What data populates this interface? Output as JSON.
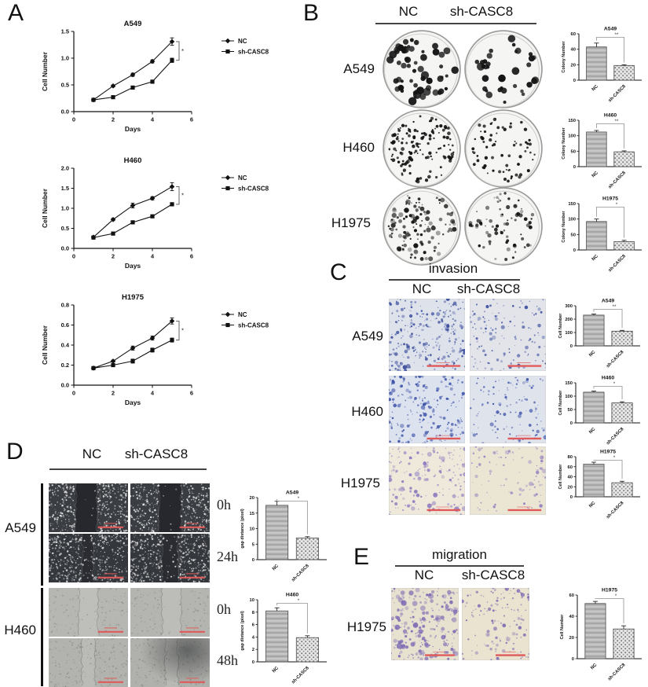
{
  "colors": {
    "axis": "#111111",
    "bracket": "#909090",
    "scale_bar": "#e05a5a",
    "bar_nc_fill": "#b9b9b9",
    "bar_sh_fill": "#e8e8e8"
  },
  "panels": {
    "A": {
      "label": "A",
      "legend": [
        "NC",
        "sh-CASC8"
      ]
    },
    "B": {
      "label": "B",
      "col_headers": [
        "NC",
        "sh-CASC8"
      ],
      "rows": [
        "A549",
        "H460",
        "H1975"
      ],
      "dishes": [
        {
          "row": "A549",
          "col": "NC",
          "dots": 58,
          "rmin": 1.8,
          "rmax": 5.2,
          "soft": false
        },
        {
          "row": "A549",
          "col": "sh-CASC8",
          "dots": 34,
          "rmin": 2.0,
          "rmax": 5.0,
          "soft": false
        },
        {
          "row": "H460",
          "col": "NC",
          "dots": 135,
          "rmin": 0.9,
          "rmax": 2.4,
          "soft": false
        },
        {
          "row": "H460",
          "col": "sh-CASC8",
          "dots": 70,
          "rmin": 0.9,
          "rmax": 2.2,
          "soft": false
        },
        {
          "row": "H1975",
          "col": "NC",
          "dots": 120,
          "rmin": 0.8,
          "rmax": 3.2,
          "soft": true
        },
        {
          "row": "H1975",
          "col": "sh-CASC8",
          "dots": 75,
          "rmin": 0.8,
          "rmax": 2.6,
          "soft": true
        }
      ]
    },
    "C": {
      "label": "C",
      "title": "invasion",
      "col_headers": [
        "NC",
        "sh-CASC8"
      ],
      "rows": [
        "A549",
        "H460",
        "H1975"
      ],
      "images": [
        {
          "row": "A549",
          "col": "NC",
          "dots": 270,
          "color": "#3c4f9e",
          "bg": "#dee2eb",
          "rmax": 2.4
        },
        {
          "row": "A549",
          "col": "sh-CASC8",
          "dots": 130,
          "color": "#3c4f9e",
          "bg": "#e2e4ea",
          "rmax": 2.2
        },
        {
          "row": "H460",
          "col": "NC",
          "dots": 210,
          "color": "#3a50a8",
          "bg": "#dce2ee",
          "rmax": 2.4
        },
        {
          "row": "H460",
          "col": "sh-CASC8",
          "dots": 115,
          "color": "#3a50a8",
          "bg": "#dfe3ec",
          "rmax": 2.2
        },
        {
          "row": "H1975",
          "col": "NC",
          "dots": 170,
          "color": "#8d7cc0",
          "bg": "#eee9da",
          "rmax": 3.0
        },
        {
          "row": "H1975",
          "col": "sh-CASC8",
          "dots": 95,
          "color": "#8d7cc0",
          "bg": "#ebe6d4",
          "rmax": 2.6
        }
      ]
    },
    "D": {
      "label": "D",
      "col_headers": [
        "NC",
        "sh-CASC8"
      ],
      "rows": [
        "A549",
        "H460"
      ],
      "time_labels": [
        "0h",
        "24h",
        "0h",
        "48h"
      ],
      "images": [
        {
          "bg": "#3a3d42",
          "speckle": "#e7e7e7",
          "count": 380,
          "gap": [
            0.34,
            0.61
          ],
          "gapFill": "#26282d",
          "gapDensity": 0.06,
          "light": false,
          "shadow": false
        },
        {
          "bg": "#3a3d42",
          "speckle": "#e7e7e7",
          "count": 360,
          "gap": [
            0.36,
            0.64
          ],
          "gapFill": "#26282d",
          "gapDensity": 0.06,
          "light": false,
          "shadow": false
        },
        {
          "bg": "#34373c",
          "speckle": "#dcdcdc",
          "count": 480,
          "gap": [
            0.42,
            0.56
          ],
          "gapFill": "#2a2c31",
          "gapDensity": 0.45,
          "light": false,
          "shadow": false
        },
        {
          "bg": "#34373c",
          "speckle": "#dcdcdc",
          "count": 460,
          "gap": [
            0.4,
            0.6
          ],
          "gapFill": "#2a2c31",
          "gapDensity": 0.35,
          "light": false,
          "shadow": false
        },
        {
          "bg": "#b6b7b3",
          "speckle": "#90918c",
          "count": 160,
          "gap": [
            0.38,
            0.62
          ],
          "gapFill": "#bebfbb",
          "gapDensity": 0.3,
          "light": true,
          "shadow": false
        },
        {
          "bg": "#b4b5b1",
          "speckle": "#90918c",
          "count": 150,
          "gap": [
            0.4,
            0.64
          ],
          "gapFill": "#bcbdb9",
          "gapDensity": 0.3,
          "light": true,
          "shadow": false
        },
        {
          "bg": "#b2b3ae",
          "speckle": "#8b8c87",
          "count": 220,
          "gap": [
            0.42,
            0.58
          ],
          "gapFill": "#babbb6",
          "gapDensity": 0.5,
          "light": true,
          "shadow": false
        },
        {
          "bg": "#b0b1ac",
          "speckle": "#8b8c87",
          "count": 200,
          "gap": [
            0.44,
            0.6
          ],
          "gapFill": "#b8b9b4",
          "gapDensity": 0.5,
          "light": true,
          "shadow": true
        }
      ]
    },
    "E": {
      "label": "E",
      "title": "migration",
      "col_headers": [
        "NC",
        "sh-CASC8"
      ],
      "rows": [
        "H1975"
      ],
      "images": [
        {
          "row": "H1975",
          "col": "NC",
          "dots": 240,
          "color": "#7e6cb4",
          "bg": "#e7e1d0",
          "rmax": 3.2
        },
        {
          "row": "H1975",
          "col": "sh-CASC8",
          "dots": 130,
          "color": "#7e6cb4",
          "bg": "#e9e3cf",
          "rmax": 2.6
        }
      ]
    }
  },
  "chart_data": [
    {
      "type": "line",
      "title": "A549",
      "xlabel": "Days",
      "ylabel": "Cell Number",
      "x": [
        1,
        2,
        3,
        4,
        5
      ],
      "xlim": [
        0,
        6
      ],
      "xticks": [
        0,
        2,
        4,
        6
      ],
      "ylim": [
        0,
        1.5
      ],
      "yticks": [
        0,
        0.5,
        1,
        1.5
      ],
      "ydecimals": 1,
      "series": [
        {
          "name": "NC",
          "marker": "diamond",
          "values": [
            0.22,
            0.48,
            0.69,
            0.94,
            1.31
          ],
          "errors": [
            0.02,
            0.02,
            0.03,
            0.03,
            0.07
          ]
        },
        {
          "name": "sh-CASC8",
          "marker": "square",
          "values": [
            0.22,
            0.27,
            0.45,
            0.56,
            0.96
          ],
          "errors": [
            0.02,
            0.02,
            0.02,
            0.03,
            0.04
          ]
        }
      ],
      "significance": "*",
      "legend_position": "right",
      "grid": false
    },
    {
      "type": "line",
      "title": "H460",
      "xlabel": "Days",
      "ylabel": "Cell Number",
      "x": [
        1,
        2,
        3,
        4,
        5
      ],
      "xlim": [
        0,
        6
      ],
      "xticks": [
        0,
        2,
        4,
        6
      ],
      "ylim": [
        0,
        2.0
      ],
      "yticks": [
        0,
        0.5,
        1,
        1.5,
        2
      ],
      "ydecimals": 1,
      "series": [
        {
          "name": "NC",
          "marker": "diamond",
          "values": [
            0.28,
            0.72,
            1.07,
            1.25,
            1.54
          ],
          "errors": [
            0.03,
            0.03,
            0.06,
            0.04,
            0.1
          ]
        },
        {
          "name": "sh-CASC8",
          "marker": "square",
          "values": [
            0.27,
            0.37,
            0.65,
            0.8,
            1.1
          ],
          "errors": [
            0.03,
            0.02,
            0.03,
            0.03,
            0.04
          ]
        }
      ],
      "significance": "*",
      "legend_position": "right",
      "grid": false
    },
    {
      "type": "line",
      "title": "H1975",
      "xlabel": "Days",
      "ylabel": "Cell Number",
      "x": [
        1,
        2,
        3,
        4,
        5
      ],
      "xlim": [
        0,
        6
      ],
      "xticks": [
        0,
        2,
        4,
        6
      ],
      "ylim": [
        0,
        0.8
      ],
      "yticks": [
        0,
        0.2,
        0.4,
        0.6,
        0.8
      ],
      "ydecimals": 1,
      "series": [
        {
          "name": "NC",
          "marker": "diamond",
          "values": [
            0.17,
            0.24,
            0.37,
            0.47,
            0.64
          ],
          "errors": [
            0.01,
            0.01,
            0.02,
            0.02,
            0.03
          ]
        },
        {
          "name": "sh-CASC8",
          "marker": "square",
          "values": [
            0.17,
            0.2,
            0.24,
            0.35,
            0.45
          ],
          "errors": [
            0.01,
            0.01,
            0.02,
            0.02,
            0.02
          ]
        }
      ],
      "significance": "*",
      "legend_position": "right",
      "grid": false
    },
    {
      "type": "bar",
      "title": "A549",
      "ylabel": "Colony Number",
      "categories": [
        "NC",
        "sh-CASC8"
      ],
      "values": [
        43,
        19
      ],
      "errors": [
        5,
        1
      ],
      "ylim": [
        0,
        60
      ],
      "yticks": [
        0,
        20,
        40,
        60
      ],
      "significance": "**"
    },
    {
      "type": "bar",
      "title": "H460",
      "ylabel": "Colony Number",
      "categories": [
        "NC",
        "sh-CASC8"
      ],
      "values": [
        112,
        48
      ],
      "errors": [
        5,
        3
      ],
      "ylim": [
        0,
        150
      ],
      "yticks": [
        0,
        50,
        100,
        150
      ],
      "significance": "**"
    },
    {
      "type": "bar",
      "title": "H1975",
      "ylabel": "Colony Number",
      "categories": [
        "NC",
        "sh-CASC8"
      ],
      "values": [
        92,
        27
      ],
      "errors": [
        8,
        4
      ],
      "ylim": [
        0,
        150
      ],
      "yticks": [
        0,
        50,
        100,
        150
      ],
      "significance": "*"
    },
    {
      "type": "bar",
      "title": "A549",
      "ylabel": "Cell Number",
      "categories": [
        "NC",
        "sh-CASC8"
      ],
      "values": [
        230,
        110
      ],
      "errors": [
        8,
        6
      ],
      "ylim": [
        0,
        300
      ],
      "yticks": [
        0,
        100,
        200,
        300
      ],
      "significance": "**"
    },
    {
      "type": "bar",
      "title": "H460",
      "ylabel": "Cell Number",
      "categories": [
        "NC",
        "sh-CASC8"
      ],
      "values": [
        115,
        75
      ],
      "errors": [
        4,
        4
      ],
      "ylim": [
        0,
        150
      ],
      "yticks": [
        0,
        50,
        100,
        150
      ],
      "significance": "*"
    },
    {
      "type": "bar",
      "title": "H1975",
      "ylabel": "Cell Number",
      "categories": [
        "NC",
        "sh-CASC8"
      ],
      "values": [
        65,
        28
      ],
      "errors": [
        4,
        3
      ],
      "ylim": [
        0,
        80
      ],
      "yticks": [
        0,
        20,
        40,
        60,
        80
      ],
      "significance": "*"
    },
    {
      "type": "bar",
      "title": "A549",
      "ylabel": "gap distance (pixel)",
      "categories": [
        "NC",
        "sh-CASC8"
      ],
      "values": [
        17.5,
        7
      ],
      "errors": [
        1.3,
        0.4
      ],
      "ylim": [
        0,
        20
      ],
      "yticks": [
        0,
        5,
        10,
        15,
        20
      ],
      "significance": "*"
    },
    {
      "type": "bar",
      "title": "H460",
      "ylabel": "gap distance (pixel)",
      "categories": [
        "NC",
        "sh-CASC8"
      ],
      "values": [
        8.2,
        3.9
      ],
      "errors": [
        0.5,
        0.3
      ],
      "ylim": [
        0,
        10
      ],
      "yticks": [
        0,
        2,
        4,
        6,
        8,
        10
      ],
      "significance": "*"
    },
    {
      "type": "bar",
      "title": "H1975",
      "ylabel": "Cell Number",
      "categories": [
        "NC",
        "sh-CASC8"
      ],
      "values": [
        52,
        28
      ],
      "errors": [
        2,
        3
      ],
      "ylim": [
        0,
        60
      ],
      "yticks": [
        0,
        20,
        40,
        60
      ],
      "significance": "*"
    }
  ]
}
